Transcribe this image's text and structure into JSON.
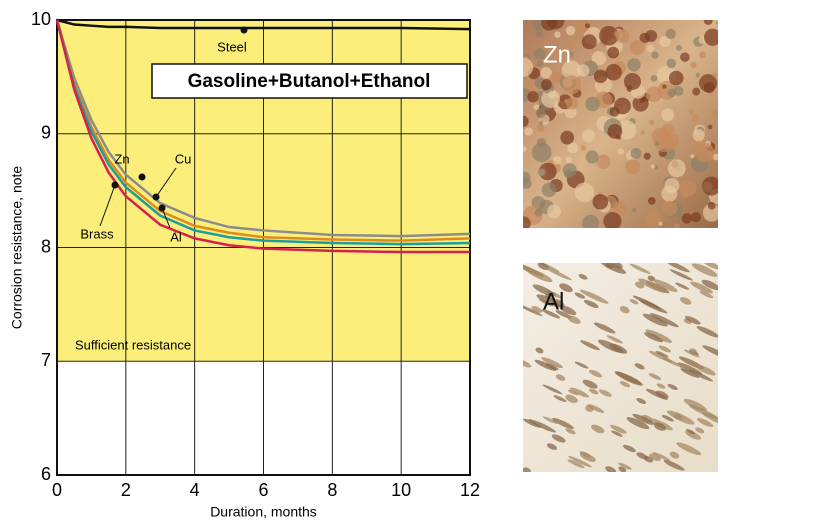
{
  "chart_data": {
    "type": "line",
    "ylabel": "Corrosion resistance, note",
    "xlabel": "Duration, months",
    "annotations": [
      "Gasoline+Butanol+Ethanol",
      "Sufficient resistance"
    ],
    "threshold": 7,
    "x": [
      0,
      0.5,
      1,
      1.5,
      2,
      3,
      4,
      5,
      6,
      8,
      10,
      12
    ],
    "series": [
      {
        "name": "Steel",
        "color": "#111111",
        "values": [
          10,
          9.96,
          9.95,
          9.94,
          9.94,
          9.93,
          9.93,
          9.93,
          9.93,
          9.93,
          9.93,
          9.92
        ]
      },
      {
        "name": "Zn",
        "color": "#8c8c8c",
        "values": [
          10,
          9.49,
          9.12,
          8.84,
          8.64,
          8.39,
          8.26,
          8.18,
          8.15,
          8.11,
          8.1,
          8.12
        ]
      },
      {
        "name": "Cu",
        "color": "#e08a1e",
        "values": [
          10,
          9.45,
          9.06,
          8.77,
          8.57,
          8.32,
          8.19,
          8.13,
          8.09,
          8.07,
          8.06,
          8.08
        ]
      },
      {
        "name": "Al",
        "color": "#1a9fa0",
        "values": [
          10,
          9.42,
          9.02,
          8.73,
          8.53,
          8.28,
          8.15,
          8.09,
          8.06,
          8.04,
          8.03,
          8.04
        ]
      },
      {
        "name": "Brass",
        "color": "#d6204f",
        "values": [
          10,
          9.39,
          8.96,
          8.66,
          8.45,
          8.2,
          8.08,
          8.02,
          7.99,
          7.97,
          7.96,
          7.96
        ]
      }
    ],
    "xlim": [
      0,
      12
    ],
    "xticks": [
      0,
      2,
      4,
      6,
      8,
      10,
      12
    ],
    "ylim": [
      6,
      10
    ],
    "yticks": [
      6,
      7,
      8,
      9,
      10
    ],
    "grid": true
  },
  "images": [
    {
      "label": "Zn"
    },
    {
      "label": "Al"
    }
  ]
}
